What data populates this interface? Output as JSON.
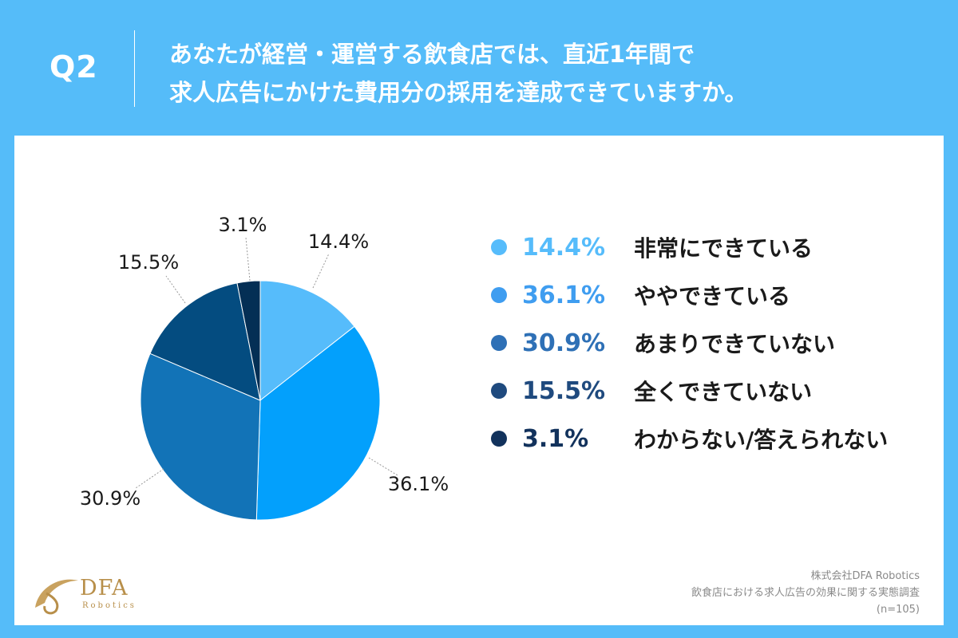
{
  "header": {
    "q_label": "Q2",
    "question_line1": "あなたが経営・運営する飲食店では、直近1年間で",
    "question_line2": "求人広告にかけた費用分の採用を達成できていますか。"
  },
  "chart_data": {
    "type": "pie",
    "title": "あなたが経営・運営する飲食店では、直近1年間で求人広告にかけた費用分の採用を達成できていますか。",
    "start_angle_deg": 0,
    "direction": "clockwise",
    "slices": [
      {
        "label": "非常にできている",
        "value": 14.4,
        "display": "14.4%",
        "color": "#56bcfb"
      },
      {
        "label": "ややできている",
        "value": 36.1,
        "display": "36.1%",
        "color": "#03a0fc"
      },
      {
        "label": "あまりできていない",
        "value": 30.9,
        "display": "30.9%",
        "color": "#1273b7"
      },
      {
        "label": "全くできていない",
        "value": 15.5,
        "display": "15.5%",
        "color": "#044c80"
      },
      {
        "label": "わからない/答えられない",
        "value": 3.1,
        "display": "3.1%",
        "color": "#042f55"
      }
    ],
    "legend_position": "right",
    "legend_pct_colors": [
      "#56bcfb",
      "#3f9df0",
      "#2e70b6",
      "#1f4a7e",
      "#12325c"
    ]
  },
  "footer": {
    "logo_text": "DFA",
    "logo_sub": "Robotics",
    "source_line1": "株式会社DFA Robotics",
    "source_line2": "飲食店における求人広告の効果に関する実態調査",
    "source_line3": "(n=105)"
  }
}
